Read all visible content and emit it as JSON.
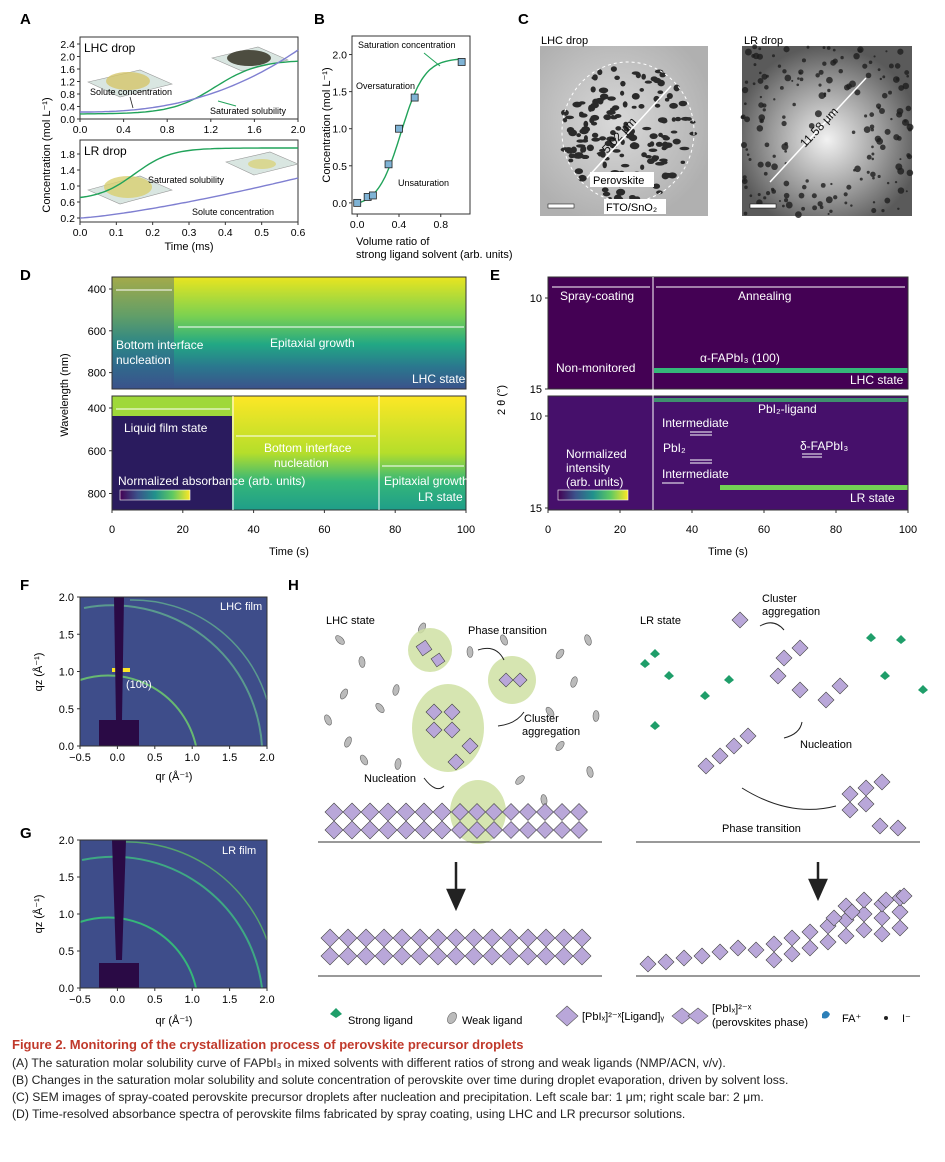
{
  "panel_letters": {
    "a": "A",
    "b": "B",
    "c": "C",
    "d": "D",
    "e": "E",
    "f": "F",
    "g": "G",
    "h": "H"
  },
  "panel_a": {
    "ylabel": "Concentration (mol L⁻¹)",
    "xlabel": "Time (ms)",
    "top": {
      "label": "LHC drop",
      "yticks": [
        "0.0",
        "0.4",
        "0.8",
        "1.2",
        "1.6",
        "2.0",
        "2.4"
      ],
      "xticks": [
        "0.0",
        "0.4",
        "0.8",
        "1.2",
        "1.6",
        "2.0"
      ],
      "ann_solute": "Solute concentration",
      "ann_sat": "Saturated solubility"
    },
    "bottom": {
      "label": "LR drop",
      "yticks": [
        "0.2",
        "0.6",
        "1.0",
        "1.4",
        "1.8"
      ],
      "xticks": [
        "0.0",
        "0.1",
        "0.2",
        "0.3",
        "0.4",
        "0.5",
        "0.6"
      ],
      "ann_solute": "Solute concentration",
      "ann_sat": "Saturated solubility"
    },
    "colors": {
      "solubility": "#21a35a",
      "solute": "#7f7fd1"
    }
  },
  "chart_data": [
    {
      "type": "scatter",
      "title": "",
      "xlabel": "Volume ratio of strong ligand solvent (arb. units)",
      "ylabel": "Concentration (mol L⁻¹)",
      "x": [
        0.0,
        0.1,
        0.15,
        0.3,
        0.4,
        0.55,
        1.0
      ],
      "y": [
        0.0,
        0.08,
        0.1,
        0.52,
        1.0,
        1.42,
        1.9
      ],
      "xlim": [
        -0.05,
        1.08
      ],
      "ylim": [
        -0.15,
        2.25
      ],
      "xticks": [
        "0.0",
        "0.4",
        "0.8"
      ],
      "yticks": [
        "0.0",
        "0.5",
        "1.0",
        "1.5",
        "2.0"
      ],
      "annotations": [
        "Saturation concentration",
        "Oversaturation",
        "Unsaturation"
      ],
      "colors": {
        "marker": "#7fb3d5",
        "curve": "#21a35a"
      }
    },
    {
      "type": "heatmap",
      "title": "",
      "ylabel": "Wavelength (nm)",
      "xlabel": "Time (s)",
      "xlim": [
        0,
        100
      ],
      "xticks": [
        "0",
        "20",
        "40",
        "60",
        "80",
        "100"
      ],
      "yticks_top": [
        "400",
        "600",
        "800"
      ],
      "yticks_bottom": [
        "400",
        "600",
        "800"
      ],
      "top_annotations": [
        "Bottom interface nucleation",
        "Epitaxial growth",
        "LHC state"
      ],
      "bottom_annotations": [
        "Liquid film state",
        "Bottom interface nucleation",
        "Epitaxial growth",
        "LR state"
      ],
      "colorbar_label": "Normalized absorbance (arb. units)"
    },
    {
      "type": "heatmap",
      "title": "",
      "ylabel": "2 θ (°)",
      "xlabel": "Time (s)",
      "xlim": [
        0,
        100
      ],
      "xticks": [
        "0",
        "20",
        "40",
        "60",
        "80",
        "100"
      ],
      "yticks_top": [
        "10",
        "15"
      ],
      "yticks_bottom": [
        "10",
        "15"
      ],
      "top_annotations": [
        "Spray-coating",
        "Annealing",
        "Non-monitored",
        "α-FAPbI₃ (100)",
        "LHC state"
      ],
      "bottom_annotations": [
        "PbI₂-ligand",
        "Intermediate",
        "PbI₂",
        "Intermediate",
        "δ-FAPbI₃",
        "LR state"
      ],
      "colorbar_label": "Normalized intensity (arb. units)"
    }
  ],
  "panel_c": {
    "left_label": "LHC drop",
    "right_label": "LR drop",
    "left_size": "5.02 μm",
    "right_size": "11.58 μm",
    "perovskite": "Perovskite",
    "substrate": "FTO/SnO₂"
  },
  "panel_fg": {
    "ylabel": "qz (Å⁻¹)",
    "xlabel": "qr (Å⁻¹)",
    "xticks": [
      "−0.5",
      "0.0",
      "0.5",
      "1.0",
      "1.5",
      "2.0"
    ],
    "yticks": [
      "0.0",
      "0.5",
      "1.0",
      "1.5",
      "2.0"
    ],
    "f_label": "LHC film",
    "g_label": "LR film",
    "peak": "(100)"
  },
  "panel_h": {
    "lhc_state": "LHC state",
    "lr_state": "LR state",
    "phase_transition": "Phase transition",
    "cluster_aggregation": "Cluster aggregation",
    "nucleation": "Nucleation",
    "legend": {
      "strong": "Strong ligand",
      "weak": "Weak ligand",
      "complex": "[PbIₓ]²⁻ˣ[Ligand]ᵧ",
      "perov1": "[PbIₓ]²⁻ˣ",
      "perov2": "(perovskites phase)",
      "fa": "FA⁺",
      "iodide": "I⁻"
    }
  },
  "caption": {
    "title": "Figure 2. Monitoring of the crystallization process of perovskite precursor droplets",
    "lines": [
      "(A) The saturation molar solubility curve of FAPbI₃ in mixed solvents with different ratios of strong and weak ligands (NMP/ACN, v/v).",
      "(B) Changes in the saturation molar solubility and solute concentration of perovskite over time during droplet evaporation, driven by solvent loss.",
      "(C) SEM images of spray-coated perovskite precursor droplets after nucleation and precipitation. Left scale bar: 1 μm; right scale bar: 2 μm.",
      "(D) Time-resolved absorbance spectra of perovskite films fabricated by spray coating, using LHC and LR precursor solutions."
    ]
  }
}
